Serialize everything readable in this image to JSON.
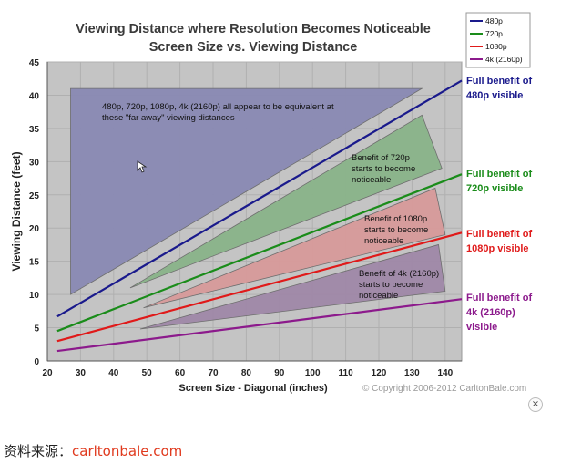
{
  "chart_data": {
    "type": "line",
    "title": "Viewing Distance where Resolution Becomes Noticeable",
    "subtitle": "Screen Size vs. Viewing Distance",
    "xlabel": "Screen Size - Diagonal (inches)",
    "ylabel": "Viewing Distance (feet)",
    "xlim": [
      20,
      145
    ],
    "ylim": [
      0,
      45
    ],
    "xticks": [
      "20",
      "30",
      "40",
      "50",
      "60",
      "70",
      "80",
      "90",
      "100",
      "110",
      "120",
      "130",
      "140"
    ],
    "yticks": [
      "0",
      "5",
      "10",
      "15",
      "20",
      "25",
      "30",
      "35",
      "40",
      "45"
    ],
    "grid": true,
    "legend_position": "top-right",
    "series": [
      {
        "name": "480p",
        "color": "#1a1a8c",
        "x": [
          23,
          145
        ],
        "y": [
          6.7,
          42.2
        ]
      },
      {
        "name": "720p",
        "color": "#1a8c1a",
        "x": [
          23,
          145
        ],
        "y": [
          4.5,
          28.1
        ]
      },
      {
        "name": "1080p",
        "color": "#e01a1a",
        "x": [
          23,
          145
        ],
        "y": [
          3.0,
          19.3
        ]
      },
      {
        "name": "4k (2160p)",
        "color": "#8c1a8c",
        "x": [
          23,
          145
        ],
        "y": [
          1.5,
          9.3
        ]
      }
    ],
    "regions": [
      {
        "fill": "#8a8ab4",
        "points": [
          [
            27,
            41
          ],
          [
            133,
            41
          ],
          [
            27,
            10
          ]
        ],
        "text": [
          "480p, 720p, 1080p, 4k (2160p) all appear to be equivalent at",
          "these \"far away\" viewing distances"
        ]
      },
      {
        "fill": "#8ab48a",
        "points": [
          [
            133,
            37
          ],
          [
            139,
            29
          ],
          [
            45,
            11
          ]
        ],
        "text": [
          "Benefit of 720p",
          "starts to become",
          "noticeable"
        ]
      },
      {
        "fill": "#d89a9a",
        "points": [
          [
            137,
            26
          ],
          [
            140,
            19
          ],
          [
            49,
            8
          ]
        ],
        "text": [
          "Benefit of 1080p",
          "starts to become",
          "noticeable"
        ]
      },
      {
        "fill": "#a088a8",
        "points": [
          [
            138,
            17.5
          ],
          [
            140,
            10.5
          ],
          [
            48,
            4.8
          ]
        ],
        "text": [
          "Benefit of 4k (2160p)",
          "starts to become",
          "noticeable"
        ]
      }
    ],
    "side_labels": [
      {
        "text": [
          "Full benefit of",
          "480p visible"
        ],
        "color": "#1a1a8c"
      },
      {
        "text": [
          "Full benefit of",
          "720p visible"
        ],
        "color": "#1a8c1a"
      },
      {
        "text": [
          "Full benefit of",
          "1080p visible"
        ],
        "color": "#e01a1a"
      },
      {
        "text": [
          "Full benefit of",
          "4k (2160p)",
          "visible"
        ],
        "color": "#8c1a8c"
      }
    ],
    "copyright": "© Copyright 2006-2012 CarltonBale.com"
  },
  "footer": {
    "source_prefix": "资料来源：",
    "source_link": "carltonbale.com",
    "close_symbol": "×"
  }
}
